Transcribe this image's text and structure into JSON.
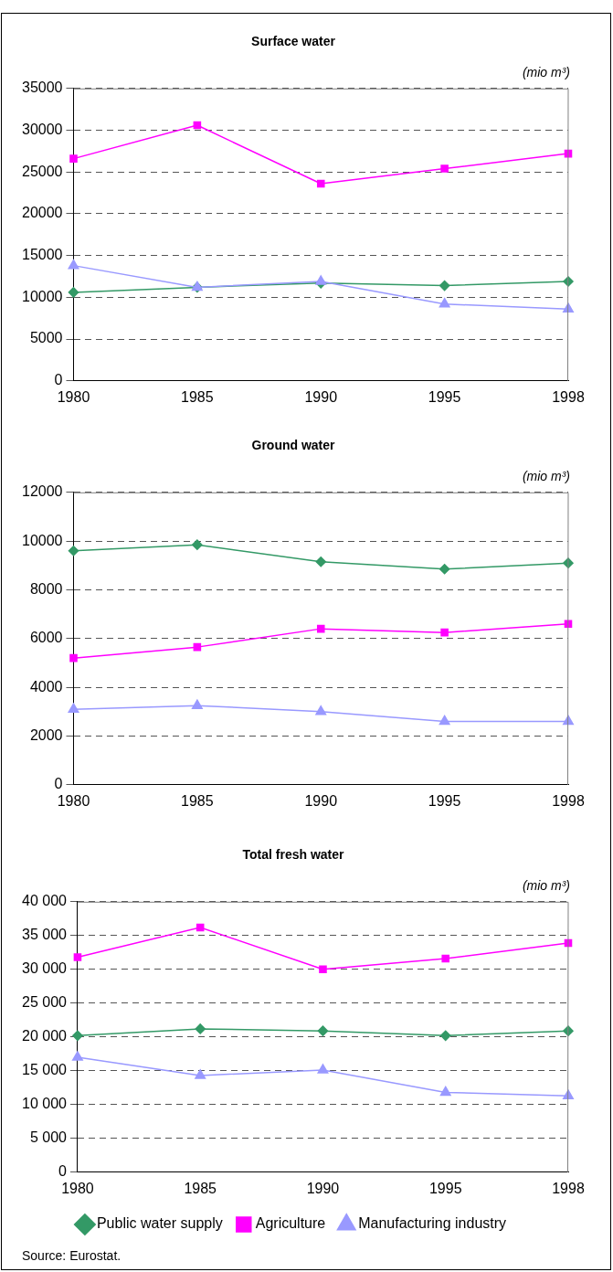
{
  "chart_data": [
    {
      "type": "line",
      "title": "Surface water",
      "ylabel": "(mio m³)",
      "categories": [
        "1980",
        "1985",
        "1990",
        "1995",
        "1998"
      ],
      "series": [
        {
          "color": "#339966",
          "marker": "diamond",
          "values": [
            10600,
            11200,
            11700,
            11400,
            11900
          ]
        },
        {
          "color": "#ff00ff",
          "marker": "square",
          "values": [
            26600,
            30600,
            23600,
            25400,
            27200
          ]
        },
        {
          "color": "#9999ff",
          "marker": "triangle",
          "values": [
            13800,
            11200,
            11900,
            9200,
            8600
          ]
        }
      ],
      "ylim": [
        0,
        35000
      ],
      "yticks": [
        0,
        5000,
        10000,
        15000,
        20000,
        25000,
        30000,
        35000
      ],
      "grid": "y",
      "legend": false
    },
    {
      "type": "line",
      "title": "Ground water",
      "ylabel": "(mio m³)",
      "categories": [
        "1980",
        "1985",
        "1990",
        "1995",
        "1998"
      ],
      "series": [
        {
          "color": "#339966",
          "marker": "diamond",
          "values": [
            9600,
            9850,
            9150,
            8850,
            9100
          ]
        },
        {
          "color": "#ff00ff",
          "marker": "square",
          "values": [
            5200,
            5650,
            6400,
            6250,
            6600
          ]
        },
        {
          "color": "#9999ff",
          "marker": "triangle",
          "values": [
            3100,
            3250,
            3000,
            2600,
            2600
          ]
        }
      ],
      "ylim": [
        0,
        12000
      ],
      "yticks": [
        0,
        2000,
        4000,
        6000,
        8000,
        10000,
        12000
      ],
      "grid": "y",
      "legend": false
    },
    {
      "type": "line",
      "title": "Total fresh water",
      "ylabel": "(mio m³)",
      "categories": [
        "1980",
        "1985",
        "1990",
        "1995",
        "1998"
      ],
      "series": [
        {
          "name": "Public water supply",
          "color": "#339966",
          "marker": "diamond",
          "values": [
            20200,
            21200,
            20900,
            20200,
            20900
          ]
        },
        {
          "name": "Agriculture",
          "color": "#ff00ff",
          "marker": "square",
          "values": [
            31800,
            36200,
            30000,
            31600,
            33900
          ]
        },
        {
          "name": "Manufacturing industry",
          "color": "#9999ff",
          "marker": "triangle",
          "values": [
            17000,
            14300,
            15100,
            11800,
            11300
          ]
        }
      ],
      "ylim": [
        0,
        40000
      ],
      "yticks": [
        0,
        {
          "value": 5000,
          "label": "5 000"
        },
        {
          "value": 10000,
          "label": "10 000"
        },
        {
          "value": 15000,
          "label": "15 000"
        },
        {
          "value": 20000,
          "label": "20 000"
        },
        {
          "value": 25000,
          "label": "25 000"
        },
        {
          "value": 30000,
          "label": "30 000"
        },
        {
          "value": 35000,
          "label": "35 000"
        },
        {
          "value": 40000,
          "label": "40 000"
        }
      ],
      "grid": "y",
      "legend": "bottom",
      "annotations": [
        "Source: Eurostat."
      ]
    }
  ]
}
